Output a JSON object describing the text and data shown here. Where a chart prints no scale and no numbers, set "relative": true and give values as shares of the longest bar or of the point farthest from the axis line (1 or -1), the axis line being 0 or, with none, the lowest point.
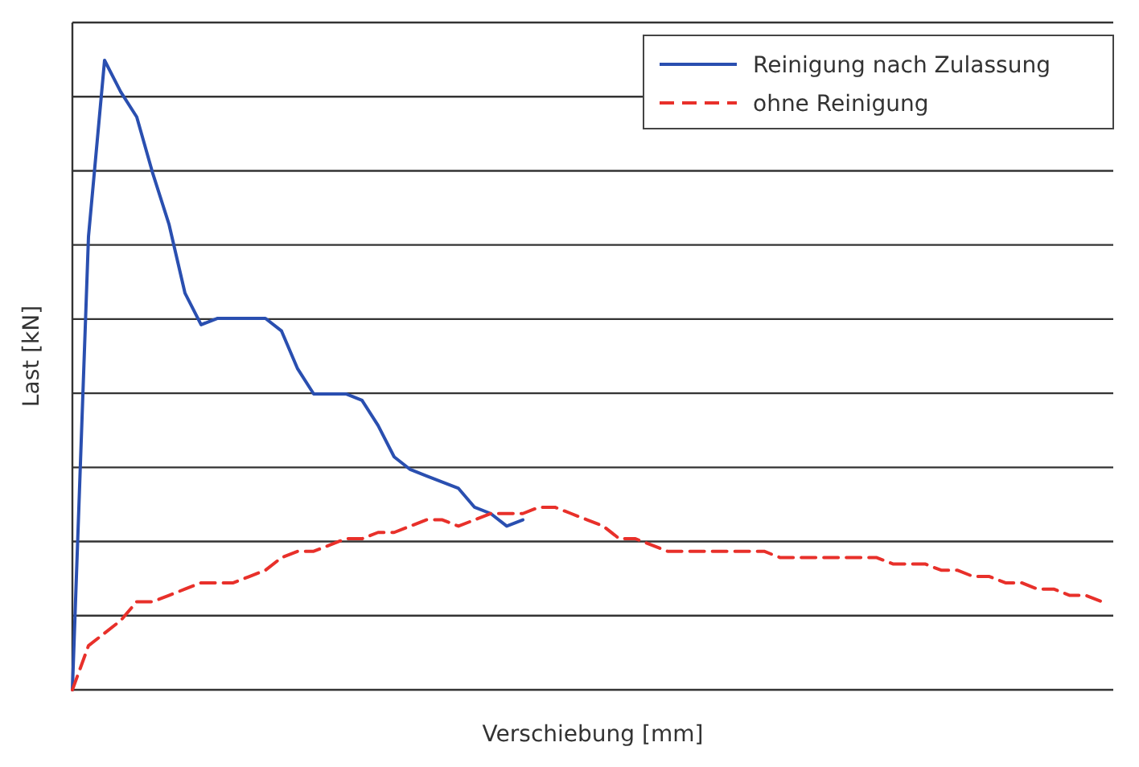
{
  "chart_data": {
    "type": "line",
    "relative": true,
    "xlabel": "Verschiebung [mm]",
    "ylabel": "Last [kN]",
    "grid": "y",
    "legend": "top right",
    "categories": [
      null,
      null,
      null,
      null,
      null,
      null,
      null,
      null,
      null,
      null,
      null,
      null,
      null,
      null,
      null,
      null,
      null,
      null,
      null,
      null,
      null,
      null,
      null,
      null,
      null,
      null,
      null,
      null,
      null,
      null,
      null,
      null,
      null,
      null,
      null,
      null,
      null,
      null,
      null,
      null,
      null,
      null,
      null,
      null,
      null,
      null,
      null,
      null,
      null,
      null,
      null,
      null,
      null,
      null,
      null,
      null,
      null,
      null,
      null,
      null,
      null,
      null,
      null,
      null,
      null
    ],
    "series": [
      {
        "name": "Reinigung nach Zulassung",
        "color": "#2a4fb0",
        "line_style": "solid",
        "values": [
          0,
          0.72,
          1,
          0.95,
          0.91,
          0.82,
          0.74,
          0.63,
          0.58,
          0.59,
          0.59,
          0.59,
          0.59,
          0.57,
          0.51,
          0.47,
          0.47,
          0.47,
          0.46,
          0.42,
          0.37,
          0.35,
          0.34,
          0.33,
          0.32,
          0.29,
          0.28,
          0.26,
          0.27,
          null,
          null,
          null,
          null,
          null,
          null,
          null,
          null,
          null,
          null,
          null,
          null,
          null,
          null,
          null,
          null,
          null,
          null,
          null,
          null,
          null,
          null,
          null,
          null,
          null,
          null,
          null,
          null,
          null,
          null,
          null,
          null,
          null,
          null,
          null,
          null
        ]
      },
      {
        "name": "ohne Reinigung",
        "color": "#e8302a",
        "line_style": "dashed",
        "values": [
          0,
          0.07,
          0.09,
          0.11,
          0.14,
          0.14,
          0.15,
          0.16,
          0.17,
          0.17,
          0.17,
          0.18,
          0.19,
          0.21,
          0.22,
          0.22,
          0.23,
          0.24,
          0.24,
          0.25,
          0.25,
          0.26,
          0.27,
          0.27,
          0.26,
          0.27,
          0.28,
          0.28,
          0.28,
          0.29,
          0.29,
          0.28,
          0.27,
          0.26,
          0.24,
          0.24,
          0.23,
          0.22,
          0.22,
          0.22,
          0.22,
          0.22,
          0.22,
          0.22,
          0.21,
          0.21,
          0.21,
          0.21,
          0.21,
          0.21,
          0.21,
          0.2,
          0.2,
          0.2,
          0.19,
          0.19,
          0.18,
          0.18,
          0.17,
          0.17,
          0.16,
          0.16,
          0.15,
          0.15,
          0.14
        ]
      }
    ]
  }
}
